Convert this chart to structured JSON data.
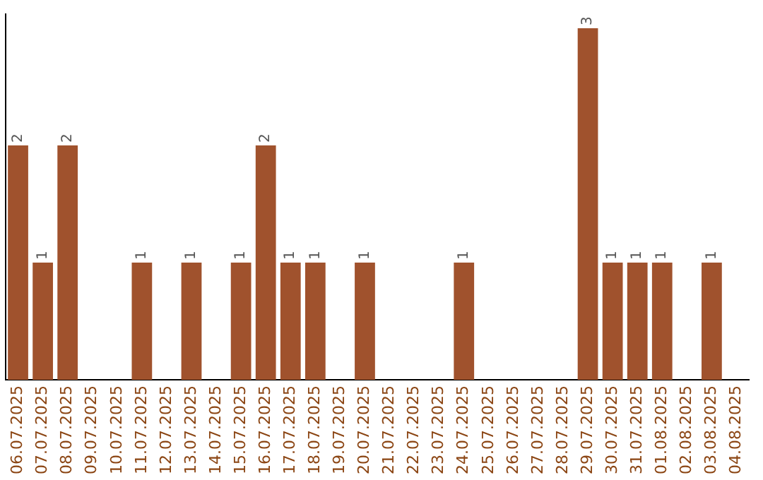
{
  "chart_data": {
    "type": "bar",
    "categories": [
      "06.07.2025",
      "07.07.2025",
      "08.07.2025",
      "09.07.2025",
      "10.07.2025",
      "11.07.2025",
      "12.07.2025",
      "13.07.2025",
      "14.07.2025",
      "15.07.2025",
      "16.07.2025",
      "17.07.2025",
      "18.07.2025",
      "19.07.2025",
      "20.07.2025",
      "21.07.2025",
      "22.07.2025",
      "23.07.2025",
      "24.07.2025",
      "25.07.2025",
      "26.07.2025",
      "27.07.2025",
      "28.07.2025",
      "29.07.2025",
      "30.07.2025",
      "31.07.2025",
      "01.08.2025",
      "02.08.2025",
      "03.08.2025",
      "04.08.2025"
    ],
    "values": [
      2,
      1,
      2,
      0,
      0,
      1,
      0,
      1,
      0,
      1,
      2,
      1,
      1,
      0,
      1,
      0,
      0,
      0,
      1,
      0,
      0,
      0,
      0,
      3,
      1,
      1,
      1,
      0,
      1,
      0
    ],
    "value_labels": [
      "2",
      "1",
      "2",
      null,
      null,
      "1",
      null,
      "1",
      null,
      "1",
      "2",
      "1",
      "1",
      null,
      "1",
      null,
      null,
      null,
      "1",
      null,
      null,
      null,
      null,
      "3",
      "1",
      "1",
      "1",
      null,
      "1",
      null
    ],
    "color": "#a0522d",
    "grid": false,
    "legend": false,
    "tick_labels": "x"
  }
}
